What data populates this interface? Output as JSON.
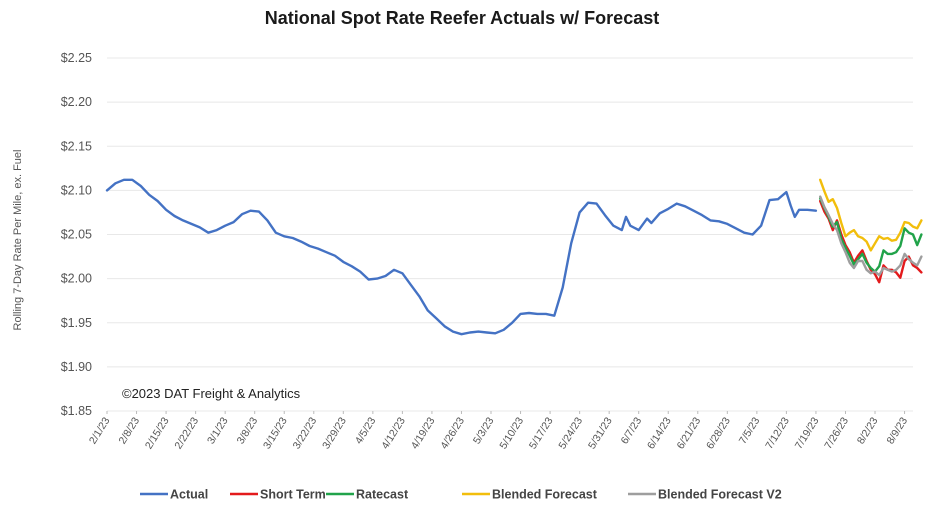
{
  "chart_data": {
    "type": "line",
    "title": "National Spot Rate Reefer Actuals w/ Forecast",
    "ylabel": "Rolling 7-Day Rate Per Mile, ex. Fuel",
    "annotation": "©2023 DAT Freight & Analytics",
    "ylim": [
      1.85,
      2.25
    ],
    "yticks": [
      1.85,
      1.9,
      1.95,
      2.0,
      2.05,
      2.1,
      2.15,
      2.2,
      2.25
    ],
    "ytick_labels": [
      "$1.85",
      "$1.90",
      "$1.95",
      "$2.00",
      "$2.05",
      "$2.10",
      "$2.15",
      "$2.20",
      "$2.25"
    ],
    "x_axis": {
      "type": "date",
      "start": "2023-02-01",
      "end": "2023-08-11"
    },
    "xticks": [
      "2023-02-01",
      "2023-02-08",
      "2023-02-15",
      "2023-02-22",
      "2023-03-01",
      "2023-03-08",
      "2023-03-15",
      "2023-03-22",
      "2023-03-29",
      "2023-04-05",
      "2023-04-12",
      "2023-04-19",
      "2023-04-26",
      "2023-05-03",
      "2023-05-10",
      "2023-05-17",
      "2023-05-24",
      "2023-05-31",
      "2023-06-07",
      "2023-06-14",
      "2023-06-21",
      "2023-06-28",
      "2023-07-05",
      "2023-07-12",
      "2023-07-19",
      "2023-07-26",
      "2023-08-02",
      "2023-08-09"
    ],
    "xtick_labels": [
      "2/1/23",
      "2/8/23",
      "2/15/23",
      "2/22/23",
      "3/1/23",
      "3/8/23",
      "3/15/23",
      "3/22/23",
      "3/29/23",
      "4/5/23",
      "4/12/23",
      "4/19/23",
      "4/26/23",
      "5/3/23",
      "5/10/23",
      "5/17/23",
      "5/24/23",
      "5/31/23",
      "6/7/23",
      "6/14/23",
      "6/21/23",
      "6/28/23",
      "7/5/23",
      "7/12/23",
      "7/19/23",
      "7/26/23",
      "8/2/23",
      "8/9/23"
    ],
    "grid": true,
    "legend_position": "bottom",
    "series": [
      {
        "name": "Actual",
        "color": "#4472C4",
        "points": [
          [
            "2023-02-01",
            2.1
          ],
          [
            "2023-02-03",
            2.108
          ],
          [
            "2023-02-05",
            2.112
          ],
          [
            "2023-02-07",
            2.112
          ],
          [
            "2023-02-09",
            2.105
          ],
          [
            "2023-02-11",
            2.095
          ],
          [
            "2023-02-13",
            2.088
          ],
          [
            "2023-02-15",
            2.078
          ],
          [
            "2023-02-17",
            2.071
          ],
          [
            "2023-02-19",
            2.066
          ],
          [
            "2023-02-21",
            2.062
          ],
          [
            "2023-02-23",
            2.058
          ],
          [
            "2023-02-25",
            2.052
          ],
          [
            "2023-02-27",
            2.055
          ],
          [
            "2023-03-01",
            2.06
          ],
          [
            "2023-03-03",
            2.064
          ],
          [
            "2023-03-05",
            2.073
          ],
          [
            "2023-03-07",
            2.077
          ],
          [
            "2023-03-09",
            2.076
          ],
          [
            "2023-03-11",
            2.066
          ],
          [
            "2023-03-13",
            2.052
          ],
          [
            "2023-03-15",
            2.048
          ],
          [
            "2023-03-17",
            2.046
          ],
          [
            "2023-03-19",
            2.042
          ],
          [
            "2023-03-21",
            2.037
          ],
          [
            "2023-03-23",
            2.034
          ],
          [
            "2023-03-25",
            2.03
          ],
          [
            "2023-03-27",
            2.026
          ],
          [
            "2023-03-29",
            2.019
          ],
          [
            "2023-03-31",
            2.014
          ],
          [
            "2023-04-02",
            2.008
          ],
          [
            "2023-04-04",
            1.999
          ],
          [
            "2023-04-06",
            2.0
          ],
          [
            "2023-04-08",
            2.003
          ],
          [
            "2023-04-10",
            2.01
          ],
          [
            "2023-04-12",
            2.006
          ],
          [
            "2023-04-14",
            1.993
          ],
          [
            "2023-04-16",
            1.98
          ],
          [
            "2023-04-18",
            1.964
          ],
          [
            "2023-04-20",
            1.955
          ],
          [
            "2023-04-22",
            1.946
          ],
          [
            "2023-04-24",
            1.94
          ],
          [
            "2023-04-26",
            1.937
          ],
          [
            "2023-04-28",
            1.939
          ],
          [
            "2023-04-30",
            1.94
          ],
          [
            "2023-05-02",
            1.939
          ],
          [
            "2023-05-04",
            1.938
          ],
          [
            "2023-05-06",
            1.942
          ],
          [
            "2023-05-08",
            1.95
          ],
          [
            "2023-05-10",
            1.96
          ],
          [
            "2023-05-12",
            1.961
          ],
          [
            "2023-05-14",
            1.96
          ],
          [
            "2023-05-16",
            1.96
          ],
          [
            "2023-05-18",
            1.958
          ],
          [
            "2023-05-20",
            1.99
          ],
          [
            "2023-05-22",
            2.04
          ],
          [
            "2023-05-24",
            2.075
          ],
          [
            "2023-05-26",
            2.086
          ],
          [
            "2023-05-28",
            2.085
          ],
          [
            "2023-05-30",
            2.072
          ],
          [
            "2023-06-01",
            2.06
          ],
          [
            "2023-06-03",
            2.055
          ],
          [
            "2023-06-04",
            2.07
          ],
          [
            "2023-06-05",
            2.06
          ],
          [
            "2023-06-07",
            2.055
          ],
          [
            "2023-06-09",
            2.068
          ],
          [
            "2023-06-10",
            2.063
          ],
          [
            "2023-06-12",
            2.074
          ],
          [
            "2023-06-14",
            2.079
          ],
          [
            "2023-06-16",
            2.085
          ],
          [
            "2023-06-18",
            2.082
          ],
          [
            "2023-06-20",
            2.077
          ],
          [
            "2023-06-22",
            2.072
          ],
          [
            "2023-06-24",
            2.066
          ],
          [
            "2023-06-26",
            2.065
          ],
          [
            "2023-06-28",
            2.062
          ],
          [
            "2023-06-30",
            2.057
          ],
          [
            "2023-07-02",
            2.052
          ],
          [
            "2023-07-04",
            2.05
          ],
          [
            "2023-07-06",
            2.06
          ],
          [
            "2023-07-08",
            2.089
          ],
          [
            "2023-07-10",
            2.09
          ],
          [
            "2023-07-12",
            2.098
          ],
          [
            "2023-07-13",
            2.083
          ],
          [
            "2023-07-14",
            2.07
          ],
          [
            "2023-07-15",
            2.078
          ],
          [
            "2023-07-17",
            2.078
          ],
          [
            "2023-07-19",
            2.077
          ]
        ]
      },
      {
        "name": "Short Term",
        "color": "#E31A1C",
        "points": [
          [
            "2023-07-20",
            2.088
          ],
          [
            "2023-07-21",
            2.076
          ],
          [
            "2023-07-22",
            2.068
          ],
          [
            "2023-07-23",
            2.055
          ],
          [
            "2023-07-24",
            2.066
          ],
          [
            "2023-07-25",
            2.05
          ],
          [
            "2023-07-26",
            2.038
          ],
          [
            "2023-07-27",
            2.03
          ],
          [
            "2023-07-28",
            2.018
          ],
          [
            "2023-07-29",
            2.026
          ],
          [
            "2023-07-30",
            2.032
          ],
          [
            "2023-07-31",
            2.02
          ],
          [
            "2023-08-01",
            2.01
          ],
          [
            "2023-08-02",
            2.005
          ],
          [
            "2023-08-03",
            1.996
          ],
          [
            "2023-08-04",
            2.015
          ],
          [
            "2023-08-05",
            2.01
          ],
          [
            "2023-08-06",
            2.01
          ],
          [
            "2023-08-07",
            2.007
          ],
          [
            "2023-08-08",
            2.001
          ],
          [
            "2023-08-09",
            2.02
          ],
          [
            "2023-08-10",
            2.025
          ],
          [
            "2023-08-11",
            2.015
          ],
          [
            "2023-08-12",
            2.012
          ],
          [
            "2023-08-13",
            2.007
          ]
        ]
      },
      {
        "name": "Ratecast",
        "color": "#21A34A",
        "points": [
          [
            "2023-07-20",
            2.091
          ],
          [
            "2023-07-21",
            2.08
          ],
          [
            "2023-07-22",
            2.07
          ],
          [
            "2023-07-23",
            2.059
          ],
          [
            "2023-07-24",
            2.064
          ],
          [
            "2023-07-25",
            2.045
          ],
          [
            "2023-07-26",
            2.035
          ],
          [
            "2023-07-27",
            2.026
          ],
          [
            "2023-07-28",
            2.016
          ],
          [
            "2023-07-29",
            2.022
          ],
          [
            "2023-07-30",
            2.028
          ],
          [
            "2023-07-31",
            2.018
          ],
          [
            "2023-08-01",
            2.012
          ],
          [
            "2023-08-02",
            2.008
          ],
          [
            "2023-08-03",
            2.014
          ],
          [
            "2023-08-04",
            2.032
          ],
          [
            "2023-08-05",
            2.028
          ],
          [
            "2023-08-06",
            2.028
          ],
          [
            "2023-08-07",
            2.03
          ],
          [
            "2023-08-08",
            2.037
          ],
          [
            "2023-08-09",
            2.057
          ],
          [
            "2023-08-10",
            2.052
          ],
          [
            "2023-08-11",
            2.05
          ],
          [
            "2023-08-12",
            2.038
          ],
          [
            "2023-08-13",
            2.05
          ]
        ]
      },
      {
        "name": "Blended Forecast",
        "color": "#F2BE0C",
        "points": [
          [
            "2023-07-20",
            2.112
          ],
          [
            "2023-07-21",
            2.099
          ],
          [
            "2023-07-22",
            2.087
          ],
          [
            "2023-07-23",
            2.09
          ],
          [
            "2023-07-24",
            2.08
          ],
          [
            "2023-07-25",
            2.063
          ],
          [
            "2023-07-26",
            2.048
          ],
          [
            "2023-07-27",
            2.052
          ],
          [
            "2023-07-28",
            2.055
          ],
          [
            "2023-07-29",
            2.048
          ],
          [
            "2023-07-30",
            2.046
          ],
          [
            "2023-07-31",
            2.042
          ],
          [
            "2023-08-01",
            2.032
          ],
          [
            "2023-08-02",
            2.04
          ],
          [
            "2023-08-03",
            2.048
          ],
          [
            "2023-08-04",
            2.045
          ],
          [
            "2023-08-05",
            2.046
          ],
          [
            "2023-08-06",
            2.043
          ],
          [
            "2023-08-07",
            2.044
          ],
          [
            "2023-08-08",
            2.052
          ],
          [
            "2023-08-09",
            2.064
          ],
          [
            "2023-08-10",
            2.063
          ],
          [
            "2023-08-11",
            2.059
          ],
          [
            "2023-08-12",
            2.057
          ],
          [
            "2023-08-13",
            2.066
          ]
        ]
      },
      {
        "name": "Blended Forecast V2",
        "color": "#9E9E9E",
        "points": [
          [
            "2023-07-20",
            2.093
          ],
          [
            "2023-07-21",
            2.081
          ],
          [
            "2023-07-22",
            2.072
          ],
          [
            "2023-07-23",
            2.062
          ],
          [
            "2023-07-24",
            2.055
          ],
          [
            "2023-07-25",
            2.04
          ],
          [
            "2023-07-26",
            2.03
          ],
          [
            "2023-07-27",
            2.018
          ],
          [
            "2023-07-28",
            2.012
          ],
          [
            "2023-07-29",
            2.02
          ],
          [
            "2023-07-30",
            2.02
          ],
          [
            "2023-07-31",
            2.01
          ],
          [
            "2023-08-01",
            2.006
          ],
          [
            "2023-08-02",
            2.008
          ],
          [
            "2023-08-03",
            2.004
          ],
          [
            "2023-08-04",
            2.012
          ],
          [
            "2023-08-05",
            2.01
          ],
          [
            "2023-08-06",
            2.008
          ],
          [
            "2023-08-07",
            2.01
          ],
          [
            "2023-08-08",
            2.015
          ],
          [
            "2023-08-09",
            2.028
          ],
          [
            "2023-08-10",
            2.022
          ],
          [
            "2023-08-11",
            2.018
          ],
          [
            "2023-08-12",
            2.015
          ],
          [
            "2023-08-13",
            2.025
          ]
        ]
      }
    ]
  }
}
